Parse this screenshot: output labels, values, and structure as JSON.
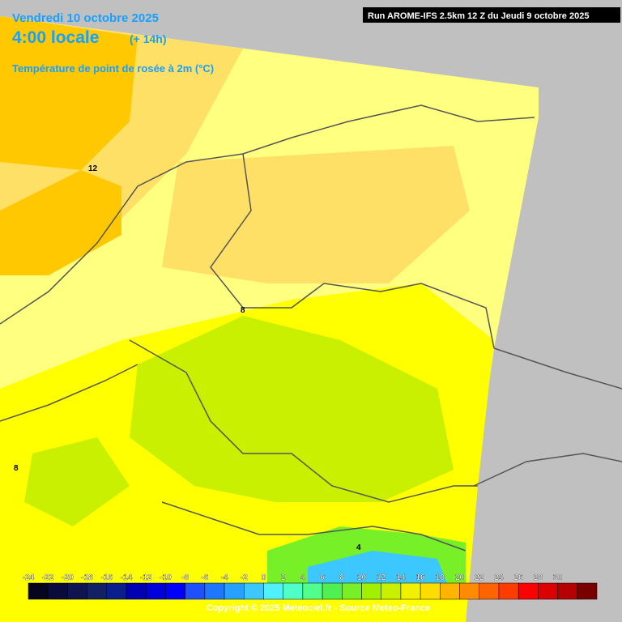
{
  "header": {
    "date": "Vendredi 10 octobre 2025",
    "time": "4:00 locale",
    "offset": "(+ 14h)",
    "parameter": "Température de point de rosée à 2m (°C)",
    "run": "Run AROME-IFS 2.5km 12 Z du Jeudi 9 octobre 2025"
  },
  "map": {
    "contour_labels": [
      "12",
      "8",
      "8",
      "4"
    ]
  },
  "legend": {
    "labels": [
      "-24",
      "-22",
      "-20",
      "-18",
      "-16",
      "-14",
      "-12",
      "-10",
      "-8",
      "-6",
      "-4",
      "-2",
      "0",
      "2",
      "4",
      "6",
      "8",
      "10",
      "12",
      "14",
      "16",
      "18",
      "20",
      "22",
      "24",
      "26",
      "28",
      "30"
    ],
    "colors": [
      "#05051e",
      "#0a0a3c",
      "#0f1450",
      "#142064",
      "#0a1e8c",
      "#0000b4",
      "#0000dc",
      "#0000ff",
      "#1e50ff",
      "#1e78ff",
      "#28a0ff",
      "#3cc8ff",
      "#50f0ff",
      "#50ffc8",
      "#50ff8c",
      "#50f050",
      "#78f028",
      "#a0f000",
      "#c8f000",
      "#f0f000",
      "#ffdc00",
      "#ffb400",
      "#ff8c00",
      "#ff6400",
      "#ff3c00",
      "#ff0000",
      "#dc0000",
      "#b40000",
      "#780000"
    ]
  },
  "footer": {
    "copyright": "Copyright © 2025 Meteociel.fr - Source Meteo-France"
  }
}
